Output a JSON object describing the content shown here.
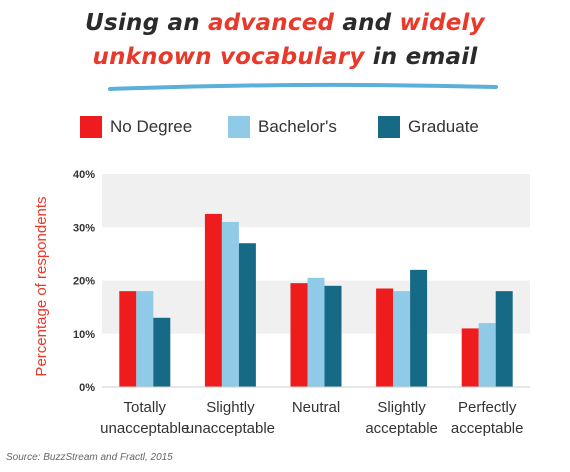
{
  "header": {
    "line1": {
      "a": "Using an ",
      "b": "advanced",
      "c": " and ",
      "d": "widely"
    },
    "line2": {
      "a": "unknown vocabulary",
      "b": " in email"
    }
  },
  "colors": {
    "no_degree": "#ee1c1c",
    "bachelors": "#8fcbe6",
    "graduate": "#176a86",
    "band": "#f0f0f0",
    "title_red": "#e8392b",
    "underline": "#5ab0d8"
  },
  "chart_data": {
    "type": "bar",
    "categories": [
      [
        "Totally",
        "unacceptable"
      ],
      [
        "Slightly",
        "unacceptable"
      ],
      [
        "Neutral"
      ],
      [
        "Slightly",
        "acceptable"
      ],
      [
        "Perfectly",
        "acceptable"
      ]
    ],
    "series": [
      {
        "name": "No Degree",
        "values": [
          18,
          32.5,
          19.5,
          18.5,
          11
        ]
      },
      {
        "name": "Bachelor's",
        "values": [
          18,
          31,
          20.5,
          18,
          12
        ]
      },
      {
        "name": "Graduate",
        "values": [
          13,
          27,
          19,
          22,
          18
        ]
      }
    ],
    "title": "Using an advanced and widely unknown vocabulary in email",
    "xlabel": "",
    "ylabel": "Percentage of respondents",
    "ylim": [
      0,
      40
    ],
    "yticks": [
      "0%",
      "10%",
      "20%",
      "30%",
      "40%"
    ],
    "legend": "top",
    "grid": "alternating bands"
  },
  "source": "Source: BuzzStream and Fractl, 2015"
}
